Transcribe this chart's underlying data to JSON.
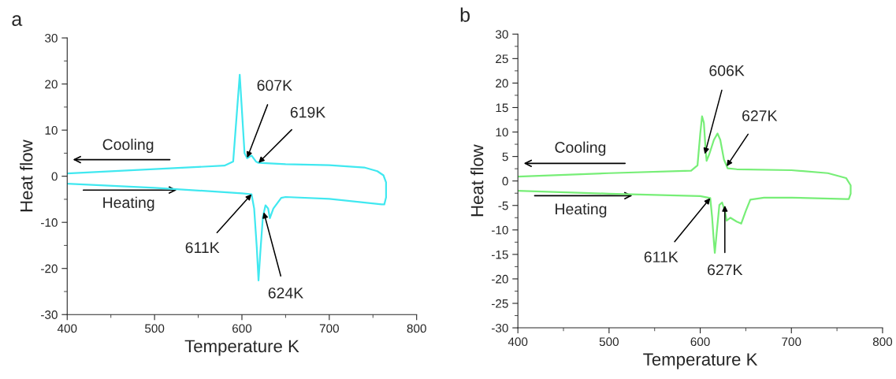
{
  "chart_data": [
    {
      "type": "line",
      "title": "a",
      "xlabel": "Temperature K",
      "ylabel": "Heat flow",
      "xlim": [
        400,
        800
      ],
      "ylim": [
        -30,
        30
      ],
      "xticks": [
        400,
        500,
        600,
        700,
        800
      ],
      "yticks": [
        -30,
        -20,
        -10,
        0,
        10,
        20,
        30
      ],
      "grid": false,
      "legend": false,
      "marker": "none",
      "line_style": "solid",
      "series": [
        {
          "color": "#40e8f0",
          "x": [
            400,
            500,
            600,
            611,
            614,
            617,
            619,
            621,
            624,
            627,
            630,
            632,
            636,
            645,
            650,
            700,
            760,
            763,
            765,
            765,
            762,
            755,
            740,
            700,
            650,
            619,
            616,
            611,
            606,
            603,
            597.5,
            590,
            580,
            400
          ],
          "values": [
            -1.6,
            -2.5,
            -3.7,
            -3.9,
            -7,
            -15.4,
            -22.6,
            -16.7,
            -8.8,
            -6.3,
            -7,
            -9.1,
            -7,
            -4.7,
            -4.5,
            -4.9,
            -6.1,
            -6.1,
            -4.6,
            -1.3,
            0.2,
            1.1,
            1.9,
            2.4,
            2.6,
            2.9,
            3.2,
            4.5,
            3.9,
            5,
            22,
            3.2,
            2.3,
            0.6
          ]
        }
      ],
      "annotations": [
        "Cooling",
        "Heating",
        {
          "text": "607K",
          "x": 606,
          "y": 4
        },
        {
          "text": "619K",
          "x": 619,
          "y": 2.9
        },
        {
          "text": "611K",
          "x": 611,
          "y": -3.9
        },
        {
          "text": "624K",
          "x": 625,
          "y": -7.8
        }
      ]
    },
    {
      "type": "line",
      "title": "b",
      "xlabel": "Temperature K",
      "ylabel": "Heat flow",
      "xlim": [
        400,
        800
      ],
      "ylim": [
        -30,
        30
      ],
      "xticks": [
        400,
        500,
        600,
        700,
        800
      ],
      "yticks": [
        -30,
        -25,
        -20,
        -15,
        -10,
        -5,
        0,
        5,
        10,
        15,
        20,
        25,
        30
      ],
      "grid": false,
      "legend": false,
      "marker": "none",
      "line_style": "solid",
      "series": [
        {
          "color": "#77ee77",
          "x": [
            400,
            500,
            600,
            611,
            613,
            615,
            616,
            618,
            621,
            624,
            627,
            629,
            633,
            640,
            645,
            650,
            655,
            670,
            700,
            760,
            763,
            765,
            765,
            760,
            740,
            700,
            640,
            630,
            626,
            622,
            619,
            615,
            610,
            607,
            606,
            604,
            602,
            600,
            597,
            590,
            500,
            400
          ],
          "values": [
            -2,
            -2.6,
            -3.1,
            -3.5,
            -7.3,
            -12.5,
            -14.7,
            -10.7,
            -4.9,
            -4.4,
            -6.1,
            -8.1,
            -7.5,
            -8.3,
            -8.7,
            -6.1,
            -3.8,
            -3.4,
            -3.4,
            -3.7,
            -3.7,
            -2.6,
            -0.9,
            0.6,
            1.6,
            2.2,
            2.4,
            2.6,
            4.4,
            8.4,
            9.7,
            8.4,
            5.5,
            4.1,
            6.1,
            11.9,
            13.2,
            9.6,
            3.2,
            2.1,
            1.6,
            0.9
          ]
        }
      ],
      "annotations": [
        "Cooling",
        "Heating",
        {
          "text": "606K",
          "x": 605,
          "y": 5.5
        },
        {
          "text": "627K",
          "x": 629,
          "y": 3
        },
        {
          "text": "611K",
          "x": 611,
          "y": -3.5
        },
        {
          "text": "627K",
          "x": 627,
          "y": -5
        }
      ]
    }
  ]
}
